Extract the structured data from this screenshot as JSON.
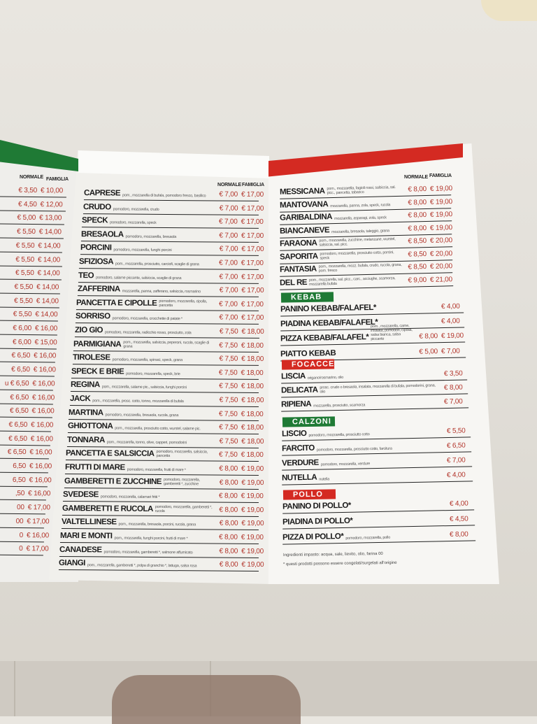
{
  "colors": {
    "green": "#1f7a35",
    "red": "#d42a22",
    "price": "#b2342a"
  },
  "left_panel": {
    "headers": {
      "normale": "NORMALE",
      "famiglia": "FAMIGLIA"
    },
    "rows": [
      {
        "normale": "€ 3,50",
        "famiglia": "€ 10,00"
      },
      {
        "normale": "€ 4,50",
        "famiglia": "€ 12,00"
      },
      {
        "normale": "€ 5,00",
        "famiglia": "€ 13,00"
      },
      {
        "normale": "€ 5,50",
        "famiglia": "€ 14,00"
      },
      {
        "normale": "€ 5,50",
        "famiglia": "€ 14,00"
      },
      {
        "normale": "€ 5,50",
        "famiglia": "€ 14,00"
      },
      {
        "normale": "€ 5,50",
        "famiglia": "€ 14,00"
      },
      {
        "normale": "€ 5,50",
        "famiglia": "€ 14,00"
      },
      {
        "normale": "€ 5,50",
        "famiglia": "€ 14,00"
      },
      {
        "normale": "€ 5,50",
        "famiglia": "€ 14,00"
      },
      {
        "normale": "€ 6,00",
        "famiglia": "€ 16,00"
      },
      {
        "normale": "€ 6,00",
        "famiglia": "€ 15,00"
      },
      {
        "normale": "€ 6,50",
        "famiglia": "€ 16,00"
      },
      {
        "normale": "€ 6,50",
        "famiglia": "€ 16,00"
      },
      {
        "normale": "u € 6,50",
        "famiglia": "€ 16,00"
      },
      {
        "normale": "€ 6,50",
        "famiglia": "€ 16,00"
      },
      {
        "normale": "€ 6,50",
        "famiglia": "€ 16,00"
      },
      {
        "normale": "€ 6,50",
        "famiglia": "€ 16,00"
      },
      {
        "normale": "€ 6,50",
        "famiglia": "€ 16,00"
      },
      {
        "normale": "€ 6,50",
        "famiglia": "€ 16,00"
      },
      {
        "normale": "6,50",
        "famiglia": "€ 16,00"
      },
      {
        "normale": "6,50",
        "famiglia": "€ 16,00"
      },
      {
        "normale": ",50",
        "famiglia": "€ 16,00"
      },
      {
        "normale": "00",
        "famiglia": "€ 17,00"
      },
      {
        "normale": "00",
        "famiglia": "€ 17,00"
      },
      {
        "normale": "0",
        "famiglia": "€ 16,00"
      },
      {
        "normale": "0",
        "famiglia": "€ 17,00"
      }
    ]
  },
  "middle_panel": {
    "headers": {
      "normale": "NORMALE",
      "famiglia": "FAMIGLIA"
    },
    "rows": [
      {
        "name": "CAPRESE",
        "ingredients": "pom., mozzarella di bufala, pomodoro fresco, basilico",
        "normale": "€ 7,00",
        "famiglia": "€ 17,00"
      },
      {
        "name": "CRUDO",
        "ingredients": "pomodoro, mozzarella, crudo",
        "normale": "€ 7,00",
        "famiglia": "€ 17,00"
      },
      {
        "name": "SPECK",
        "ingredients": "pomodoro, mozzarella, speck",
        "normale": "€ 7,00",
        "famiglia": "€ 17,00"
      },
      {
        "name": "BRESAOLA",
        "ingredients": "pomodoro, mozzarella, bresaola",
        "normale": "€ 7,00",
        "famiglia": "€ 17,00"
      },
      {
        "name": "PORCINI",
        "ingredients": "pomodoro, mozzarella, funghi porcini",
        "normale": "€ 7,00",
        "famiglia": "€ 17,00"
      },
      {
        "name": "SFIZIOSA",
        "ingredients": "pom., mozzarella, prosciutto, carciofi, scaglie di grana",
        "normale": "€ 7,00",
        "famiglia": "€ 17,00"
      },
      {
        "name": "TEO",
        "ingredients": "pomodoro, salame piccante, salsiccia, scaglie di grana",
        "normale": "€ 7,00",
        "famiglia": "€ 17,00"
      },
      {
        "name": "ZAFFERINA",
        "ingredients": "mozzarella, panna, zafferano, salsiccia, rosmarino",
        "normale": "€ 7,00",
        "famiglia": "€ 17,00"
      },
      {
        "name": "PANCETTA E CIPOLLE",
        "ingredients": "pomodoro, mozzarella, cipolla, pancetta",
        "normale": "€ 7,00",
        "famiglia": "€ 17,00"
      },
      {
        "name": "SORRISO",
        "ingredients": "pomodoro, mozzarella, crocchette di patate *",
        "normale": "€ 7,00",
        "famiglia": "€ 17,00"
      },
      {
        "name": "ZIO GIO",
        "ingredients": "pomodoro, mozzarella, radicchio rosso, prosciutto, zola",
        "normale": "€ 7,50",
        "famiglia": "€ 18,00"
      },
      {
        "name": "PARMIGIANA",
        "ingredients": "pom., mozzarella, salsiccia, peperoni, rucola, scaglie di grana",
        "normale": "€ 7,50",
        "famiglia": "€ 18,00"
      },
      {
        "name": "TIROLESE",
        "ingredients": "pomodoro, mozzarella, spinaci, speck, grana",
        "normale": "€ 7,50",
        "famiglia": "€ 18,00"
      },
      {
        "name": "SPECK E BRIE",
        "ingredients": "pomodoro, mozzarella, speck, brie",
        "normale": "€ 7,50",
        "famiglia": "€ 18,00"
      },
      {
        "name": "REGINA",
        "ingredients": "pom., mozzarella, salame pic., salsiccia, funghi porcini",
        "normale": "€ 7,50",
        "famiglia": "€ 18,00"
      },
      {
        "name": "JACK",
        "ingredients": "pom., mozzarella, prosc. cotto, tonno, mozzarella di bufala",
        "normale": "€ 7,50",
        "famiglia": "€ 18,00"
      },
      {
        "name": "MARTINA",
        "ingredients": "pomodoro, mozzarella, bresaola, rucola, grana",
        "normale": "€ 7,50",
        "famiglia": "€ 18,00"
      },
      {
        "name": "GHIOTTONA",
        "ingredients": "pom., mozzarella, prosciutto cotto, wurstel, salame pic.",
        "normale": "€ 7,50",
        "famiglia": "€ 18,00"
      },
      {
        "name": "TONNARA",
        "ingredients": "pom., mozzarella, tonno, olive, capperi, pomodorini",
        "normale": "€ 7,50",
        "famiglia": "€ 18,00"
      },
      {
        "name": "PANCETTA E SALSICCIA",
        "ingredients": "pomodoro, mozzarella, salsiccia, pancetta",
        "normale": "€ 7,50",
        "famiglia": "€ 18,00"
      },
      {
        "name": "FRUTTI DI MARE",
        "ingredients": "pomodoro, mozzarella, frutti di mare *",
        "normale": "€ 8,00",
        "famiglia": "€ 19,00"
      },
      {
        "name": "GAMBERETTI E ZUCCHINE",
        "ingredients": "pomodoro, mozzarella, gamberetti *, zucchine",
        "normale": "€ 8,00",
        "famiglia": "€ 19,00"
      },
      {
        "name": "SVEDESE",
        "ingredients": "pomodoro, mozzarella, calamari fritti *",
        "normale": "€ 8,00",
        "famiglia": "€ 19,00"
      },
      {
        "name": "GAMBERETTI E RUCOLA",
        "ingredients": "pomodoro, mozzarella, gamberetti *, rucola",
        "normale": "€ 8,00",
        "famiglia": "€ 19,00"
      },
      {
        "name": "VALTELLINESE",
        "ingredients": "pom., mozzarella, bresaola, porcini, rucola, grana",
        "normale": "€ 8,00",
        "famiglia": "€ 19,00"
      },
      {
        "name": "MARI E MONTI",
        "ingredients": "pom., mozzarella, funghi porcini, frutti di mare *",
        "normale": "€ 8,00",
        "famiglia": "€ 19,00"
      },
      {
        "name": "CANADESE",
        "ingredients": "pomodoro, mozzarella, gamberetti *, salmone affumicato",
        "normale": "€ 8,00",
        "famiglia": "€ 19,00"
      },
      {
        "name": "GIANGI",
        "ingredients": "pom., mozzarella, gamberetti *, polpa di granchio *, lattuga, salsa rosa",
        "normale": "€ 8,00",
        "famiglia": "€ 19,00"
      }
    ]
  },
  "right_panel": {
    "headers": {
      "normale": "NORMALE",
      "famiglia": "FAMIGLIA"
    },
    "pizzas": [
      {
        "name": "MESSICANA",
        "ingredients": "pom., mozzarella, fagioli rossi, salsiccia, sal. picc., pancetta, tabasco",
        "normale": "€ 8,00",
        "famiglia": "€ 19,00"
      },
      {
        "name": "MANTOVANA",
        "ingredients": "mozzarella, panna, zola, speck, rucola",
        "normale": "€ 8,00",
        "famiglia": "€ 19,00"
      },
      {
        "name": "GARIBALDINA",
        "ingredients": "mozzarella, asparagi, zola, speck",
        "normale": "€ 8,00",
        "famiglia": "€ 19,00"
      },
      {
        "name": "BIANCANEVE",
        "ingredients": "mozzarella, bresaola, taleggio, grana",
        "normale": "€ 8,00",
        "famiglia": "€ 19,00"
      },
      {
        "name": "FARAONA",
        "ingredients": "pom., mozzarella, zucchine, melanzane, wurstel, salsiccia, sal. picc.",
        "normale": "€ 8,50",
        "famiglia": "€ 20,00"
      },
      {
        "name": "SAPORITA",
        "ingredients": "pomodoro, mozzarella, prosciutto cotto, porcini, speck",
        "normale": "€ 8,50",
        "famiglia": "€ 20,00"
      },
      {
        "name": "FANTASIA",
        "ingredients": "pom., mozzarella, mozz. bufala, crudo, rucola, grana, pom. fresco",
        "normale": "€ 8,50",
        "famiglia": "€ 20,00"
      },
      {
        "name": "DEL RE",
        "ingredients": "pom., mozzarella, sal. picc., carc., acciughe, scamorza, mozzarella bufala",
        "normale": "€ 9,00",
        "famiglia": "€ 21,00"
      }
    ],
    "sections": [
      {
        "title": "KEBAB",
        "color": "green",
        "items": [
          {
            "name": "PANINO KEBAB/FALAFEL*",
            "ingredients": "",
            "normale": "",
            "famiglia": "€ 4,00"
          },
          {
            "name": "PIADINA KEBAB/FALAFEL*",
            "ingredients": "",
            "normale": "",
            "famiglia": "€ 4,00"
          },
          {
            "name": "PIZZA KEBAB/FALAFEL*",
            "ingredients": "pom., mozzarella, carne, insalata, pomodori, cipolla, salsa bianca, salsa piccante",
            "normale": "€ 8,00",
            "famiglia": "€ 19,00"
          },
          {
            "name": "PIATTO KEBAB",
            "ingredients": "",
            "normale": "€ 5,00",
            "famiglia": "€ 7,00"
          }
        ]
      },
      {
        "title": "FOCACCE",
        "color": "red",
        "items": [
          {
            "name": "LISCIA",
            "ingredients": "origano/rosmarino, olio",
            "normale": "",
            "famiglia": "€ 3,50"
          },
          {
            "name": "DELICATA",
            "ingredients": "prosc. crudo o bresaola, insalata, mozzarella di bufala, pomodorini, grana, olio",
            "normale": "",
            "famiglia": "€ 8,00"
          },
          {
            "name": "RIPIENA",
            "ingredients": "mozzarella, prosciutto, scamorza",
            "normale": "",
            "famiglia": "€ 7,00"
          }
        ]
      },
      {
        "title": "CALZONI",
        "color": "green",
        "items": [
          {
            "name": "LISCIO",
            "ingredients": "pomodoro, mozzarella, prosciutto cotto",
            "normale": "",
            "famiglia": "€ 5,50"
          },
          {
            "name": "FARCITO",
            "ingredients": "pomodoro, mozzarella, prosciutto cotto, farcitura",
            "normale": "",
            "famiglia": "€ 6,50"
          },
          {
            "name": "VERDURE",
            "ingredients": "pomodoro, mozzarella, verdure",
            "normale": "",
            "famiglia": "€ 7,00"
          },
          {
            "name": "NUTELLA",
            "ingredients": "nutella",
            "normale": "",
            "famiglia": "€ 4,00"
          }
        ]
      },
      {
        "title": "POLLO",
        "color": "red",
        "items": [
          {
            "name": "PANINO DI POLLO*",
            "ingredients": "",
            "normale": "",
            "famiglia": "€ 4,00"
          },
          {
            "name": "PIADINA DI POLLO*",
            "ingredients": "",
            "normale": "",
            "famiglia": "€ 4,50"
          },
          {
            "name": "PIZZA DI POLLO*",
            "ingredients": "pomodoro, mozzarella, pollo",
            "normale": "",
            "famiglia": "€ 8,00"
          }
        ]
      }
    ],
    "notes": [
      "Ingredienti impasto: acqua, sale, lievito, olio, farina 00",
      "* questi prodotti possono essere congelati/surgelati all'origine"
    ]
  }
}
